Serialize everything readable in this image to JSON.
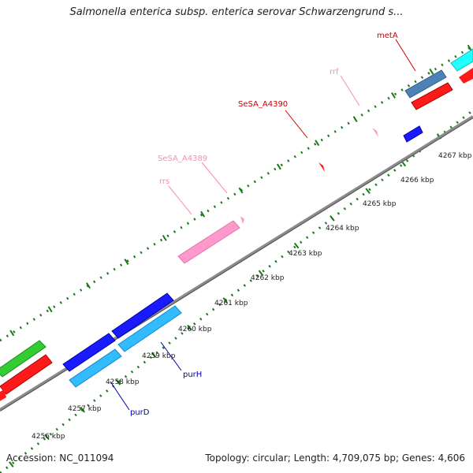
{
  "title": "Salmonella enterica subsp. enterica serovar Schwarzengrund s...",
  "footer": {
    "accession": "Accession: NC_011094",
    "summary": "Topology: circular; Length: 4,709,075 bp; Genes: 4,606"
  },
  "colors": {
    "backbone": "#8c8c8c",
    "ticks": "#1a7a1a",
    "forward_red": "#ff1a1a",
    "cds_blue": "#1a1aff",
    "cds_lightblue": "#33bbff",
    "cds_green": "#33cc33",
    "rrna_pink": "#ff99cc",
    "steel": "#4f82b4",
    "cyan": "#22ffff"
  },
  "scale_labels": [
    "4256 kbp",
    "4257 kbp",
    "4258 kbp",
    "4259 kbp",
    "4260 kbp",
    "4261 kbp",
    "4262 kbp",
    "4263 kbp",
    "4264 kbp",
    "4265 kbp",
    "4266 kbp",
    "4267 kbp"
  ],
  "gene_labels": [
    {
      "name": "metA",
      "color": "#cc0000"
    },
    {
      "name": "rrf",
      "color": "#ff88bb"
    },
    {
      "name": "SeSA_A4390",
      "color": "#cc0000"
    },
    {
      "name": "SeSA_A4389",
      "color": "#ff88bb"
    },
    {
      "name": "rrs",
      "color": "#ff88bb"
    },
    {
      "name": "purH",
      "color": "#0000aa"
    },
    {
      "name": "purD",
      "color": "#0000aa"
    }
  ]
}
